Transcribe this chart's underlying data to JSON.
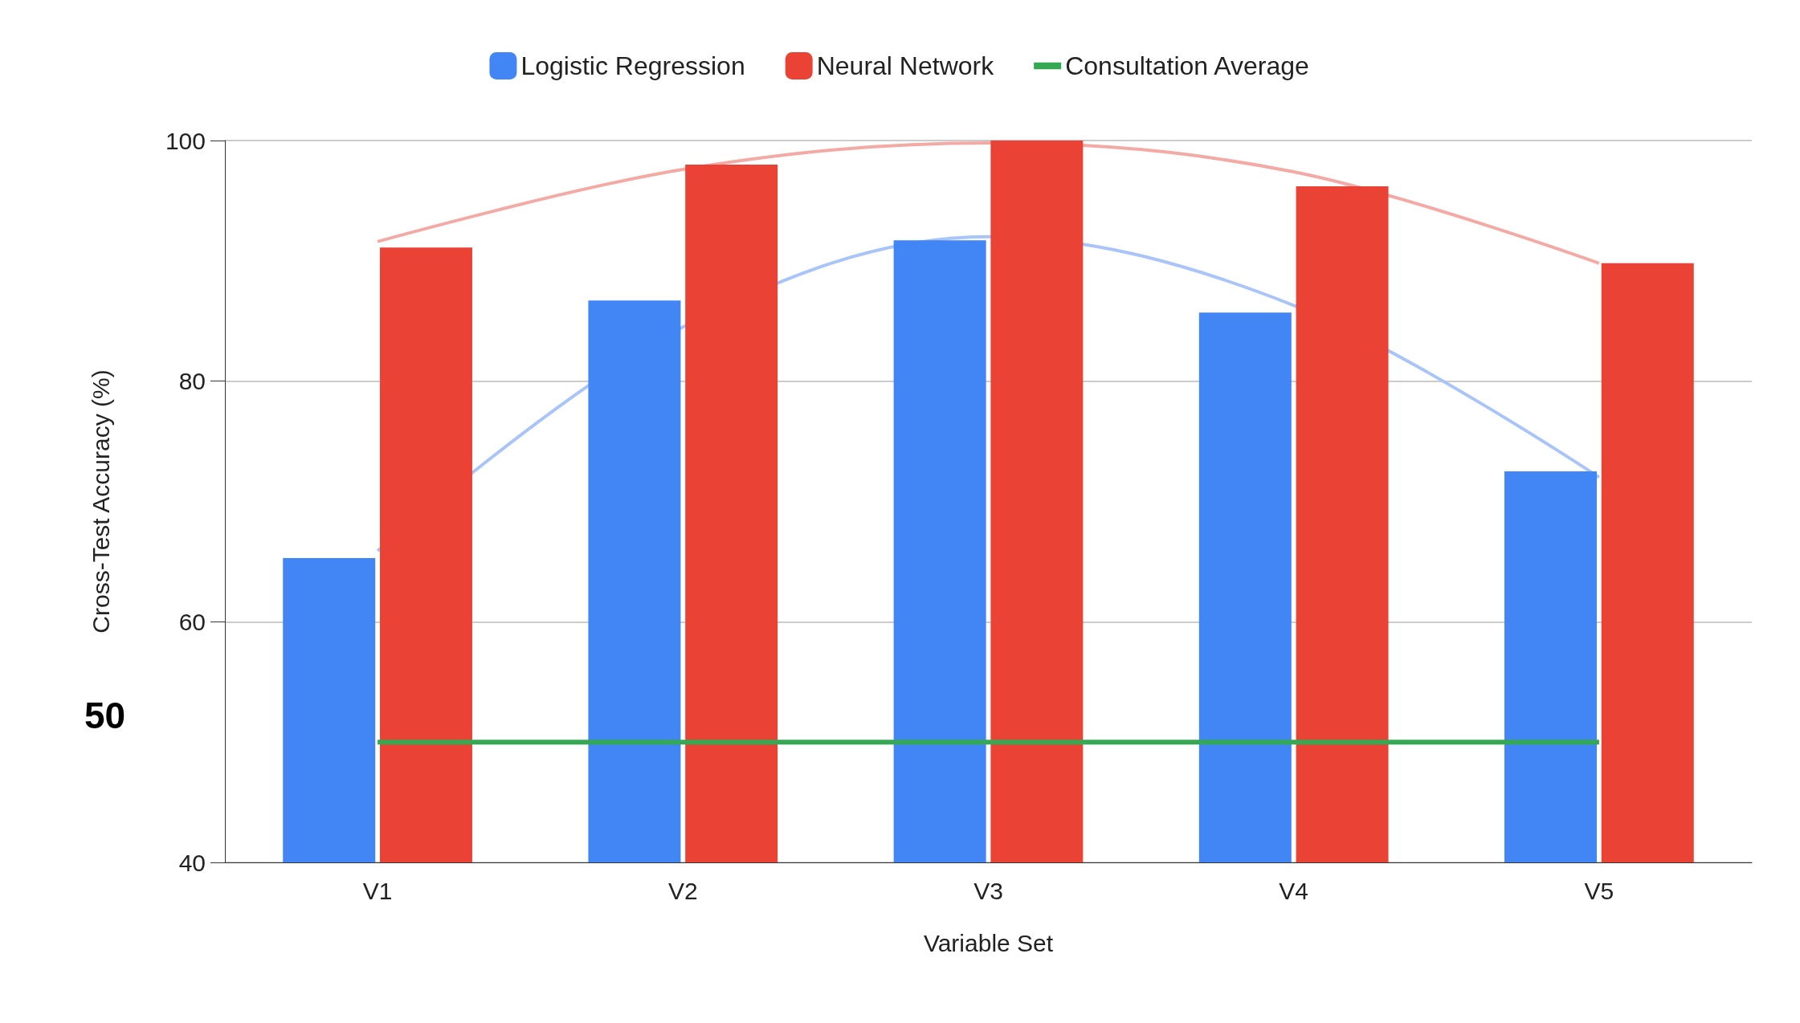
{
  "chart_data": {
    "type": "bar",
    "xlabel": "Variable Set",
    "ylabel": "Cross-Test Accuracy (%)",
    "categories": [
      "V1",
      "V2",
      "V3",
      "V4",
      "V5"
    ],
    "series": [
      {
        "name": "Logistic Regression",
        "color": "#4285f4",
        "values": [
          65.3,
          86.7,
          91.7,
          85.7,
          72.5
        ]
      },
      {
        "name": "Neural Network",
        "color": "#ea4335",
        "values": [
          91.1,
          98,
          100,
          96.2,
          89.8
        ]
      },
      {
        "name": "Consultation Average",
        "type": "line",
        "color": "#34a853",
        "values": [
          50,
          50,
          50,
          50,
          50
        ]
      },
      {
        "type": "line",
        "color": "#a8c4f8",
        "values": [
          65.9,
          84.5,
          92,
          86.3,
          72
        ]
      },
      {
        "type": "line",
        "color": "#f4aaa4",
        "values": [
          91.6,
          97.6,
          99.8,
          97.4,
          89.8
        ]
      }
    ],
    "ylim": [
      40,
      100
    ],
    "yticks": [
      40,
      60,
      80,
      100
    ],
    "grid": "y",
    "legend": "top",
    "annotations": [
      "50"
    ]
  }
}
